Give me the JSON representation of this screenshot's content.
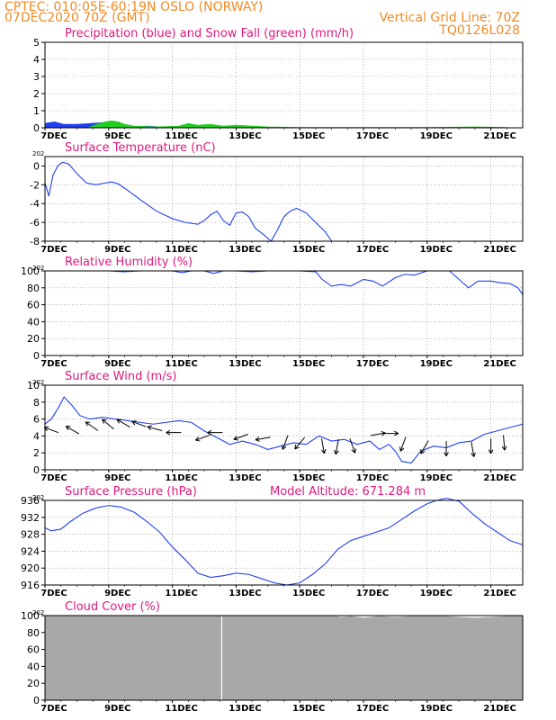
{
  "header": {
    "line1_left": "CPTEC:  010:05E-60:19N  OSLO (NORWAY)",
    "line2_left": "07DEC2020 70Z (GMT)",
    "line2_right": "Vertical Grid Line: 70Z",
    "line3_right": "TQ0126L028"
  },
  "x_axis": {
    "tick_labels": [
      "7DEC",
      "9DEC",
      "11DEC",
      "13DEC",
      "15DEC",
      "17DEC",
      "19DEC",
      "21DEC"
    ],
    "year_stub": "202"
  },
  "colors": {
    "line": "#1f3ff0",
    "precip": "#1f3ff0",
    "snow": "#22cc22",
    "cloud": "#a8a8a8",
    "header": "#f08a24",
    "title": "#e0187c"
  },
  "chart_data": [
    {
      "id": "precip",
      "type": "area",
      "title": "Precipitation (blue) and Snow Fall (green) (mm/h)",
      "xlim": [
        0,
        15
      ],
      "ylim": [
        0,
        5
      ],
      "yticks": [
        "0",
        "1",
        "2",
        "3",
        "4",
        "5"
      ],
      "grid": true,
      "series": [
        {
          "name": "Precipitation (blue)",
          "color": "#1f3ff0",
          "x": [
            0,
            0.3,
            0.6,
            1.0,
            1.4,
            1.8,
            2.1,
            2.4,
            2.8,
            3.2,
            3.6,
            4.2,
            5.0,
            6.0,
            7.0
          ],
          "y": [
            0.25,
            0.35,
            0.2,
            0.2,
            0.25,
            0.3,
            0.1,
            0.05,
            0.05,
            0.1,
            0.05,
            0.03,
            0.05,
            0.02,
            0.0
          ]
        },
        {
          "name": "Snow Fall (green)",
          "color": "#22cc22",
          "x": [
            1.4,
            1.7,
            1.9,
            2.1,
            2.3,
            2.5,
            2.8,
            3.5,
            4.2,
            4.5,
            4.8,
            5.2,
            5.6,
            6.0,
            6.5,
            7.0,
            8.0,
            10.0,
            12.0,
            13.5,
            14.5
          ],
          "y": [
            0.05,
            0.25,
            0.35,
            0.4,
            0.35,
            0.2,
            0.1,
            0.05,
            0.1,
            0.25,
            0.15,
            0.2,
            0.1,
            0.15,
            0.1,
            0.05,
            0.02,
            0.02,
            0.02,
            0.05,
            0.02
          ]
        }
      ]
    },
    {
      "id": "temp",
      "type": "line",
      "title": "Surface Temperature (nC)",
      "xlim": [
        0,
        15
      ],
      "ylim": [
        -8,
        1
      ],
      "yticks": [
        "-8",
        "-6",
        "-4",
        "-2",
        "0"
      ],
      "ytick_values": [
        -8,
        -6,
        -4,
        -2,
        0
      ],
      "grid": true,
      "series": [
        {
          "name": "Surface Temperature",
          "color": "#1f3ff0",
          "x": [
            0,
            0.12,
            0.25,
            0.4,
            0.55,
            0.75,
            1.0,
            1.3,
            1.6,
            1.9,
            2.1,
            2.3,
            2.6,
            3.0,
            3.5,
            4.0,
            4.4,
            4.8,
            5.0,
            5.2,
            5.4,
            5.6,
            5.8,
            6.0,
            6.2,
            6.4,
            6.6,
            6.9,
            7.1,
            7.3,
            7.5,
            7.7,
            7.9,
            8.2,
            8.5,
            8.8,
            9.0
          ],
          "y": [
            -1.8,
            -3.2,
            -1.0,
            0.0,
            0.4,
            0.2,
            -0.8,
            -1.8,
            -2.0,
            -1.8,
            -1.7,
            -1.9,
            -2.6,
            -3.6,
            -4.8,
            -5.6,
            -6.0,
            -6.2,
            -5.8,
            -5.2,
            -4.8,
            -5.8,
            -6.3,
            -5.0,
            -4.9,
            -5.4,
            -6.6,
            -7.4,
            -8.0,
            -6.8,
            -5.4,
            -4.8,
            -4.5,
            -5.0,
            -6.0,
            -7.0,
            -8.0
          ]
        }
      ]
    },
    {
      "id": "rh",
      "type": "line",
      "title": "Relative Humidity (%)",
      "xlim": [
        0,
        15
      ],
      "ylim": [
        0,
        100
      ],
      "yticks": [
        "0",
        "20",
        "40",
        "60",
        "80",
        "100"
      ],
      "grid": true,
      "series": [
        {
          "name": "Relative Humidity",
          "color": "#1f3ff0",
          "x": [
            0,
            0.5,
            1.0,
            1.5,
            2.0,
            2.5,
            3.0,
            3.5,
            4.0,
            4.3,
            4.6,
            5.0,
            5.3,
            5.6,
            6.0,
            6.5,
            7.0,
            7.5,
            8.0,
            8.5,
            8.7,
            9.0,
            9.3,
            9.6,
            10.0,
            10.3,
            10.6,
            11.0,
            11.3,
            11.6,
            12.0,
            12.2,
            12.4,
            12.7,
            13.0,
            13.3,
            13.6,
            14.0,
            14.3,
            14.6,
            14.85,
            15.0
          ],
          "y": [
            100,
            100,
            100,
            100,
            100,
            99,
            100,
            100,
            100,
            98,
            100,
            100,
            97,
            100,
            100,
            99,
            100,
            100,
            100,
            99,
            90,
            82,
            84,
            82,
            90,
            88,
            82,
            92,
            96,
            95,
            100,
            100,
            100,
            100,
            90,
            80,
            88,
            88,
            86,
            85,
            80,
            72
          ]
        }
      ]
    },
    {
      "id": "wind",
      "type": "line",
      "title": "Surface Wind (m/s)",
      "xlim": [
        0,
        15
      ],
      "ylim": [
        0,
        10
      ],
      "yticks": [
        "0",
        "2",
        "4",
        "6",
        "8",
        "10"
      ],
      "grid": true,
      "series": [
        {
          "name": "Surface Wind",
          "color": "#1f3ff0",
          "x": [
            0,
            0.2,
            0.4,
            0.6,
            0.85,
            1.1,
            1.4,
            1.8,
            2.2,
            2.6,
            3.0,
            3.4,
            3.8,
            4.2,
            4.6,
            5.0,
            5.4,
            5.8,
            6.2,
            6.6,
            7.0,
            7.4,
            7.8,
            8.2,
            8.6,
            9.0,
            9.4,
            9.8,
            10.2,
            10.5,
            10.8,
            11.0,
            11.2,
            11.5,
            11.8,
            12.2,
            12.6,
            13.0,
            13.4,
            13.8,
            14.2,
            14.6,
            15.0
          ],
          "y": [
            5.4,
            6.0,
            7.2,
            8.6,
            7.6,
            6.4,
            6.0,
            6.2,
            6.0,
            5.8,
            5.6,
            5.4,
            5.6,
            5.8,
            5.6,
            4.6,
            3.8,
            3.0,
            3.4,
            3.0,
            2.4,
            2.8,
            3.2,
            3.0,
            4.0,
            3.4,
            3.6,
            3.0,
            3.4,
            2.4,
            3.0,
            2.2,
            1.0,
            0.8,
            2.2,
            2.8,
            2.6,
            3.2,
            3.4,
            4.2,
            4.6,
            5.0,
            5.4
          ]
        }
      ],
      "wind_vectors": [
        {
          "x": 0.35,
          "y": 4.5,
          "dir_deg": 160
        },
        {
          "x": 1.0,
          "y": 4.4,
          "dir_deg": 150
        },
        {
          "x": 1.6,
          "y": 4.8,
          "dir_deg": 145
        },
        {
          "x": 2.1,
          "y": 5.0,
          "dir_deg": 140
        },
        {
          "x": 2.6,
          "y": 5.2,
          "dir_deg": 150
        },
        {
          "x": 3.1,
          "y": 5.2,
          "dir_deg": 160
        },
        {
          "x": 3.6,
          "y": 4.7,
          "dir_deg": 165
        },
        {
          "x": 4.2,
          "y": 4.4,
          "dir_deg": 180
        },
        {
          "x": 5.1,
          "y": 4.0,
          "dir_deg": 200
        },
        {
          "x": 5.5,
          "y": 4.4,
          "dir_deg": 180
        },
        {
          "x": 6.3,
          "y": 4.1,
          "dir_deg": 200
        },
        {
          "x": 7.0,
          "y": 3.8,
          "dir_deg": 190
        },
        {
          "x": 7.6,
          "y": 3.8,
          "dir_deg": 250
        },
        {
          "x": 8.1,
          "y": 3.6,
          "dir_deg": 230
        },
        {
          "x": 8.7,
          "y": 3.4,
          "dir_deg": 280
        },
        {
          "x": 9.2,
          "y": 3.3,
          "dir_deg": 260
        },
        {
          "x": 9.6,
          "y": 3.4,
          "dir_deg": 290
        },
        {
          "x": 10.3,
          "y": 4.1,
          "dir_deg": 10
        },
        {
          "x": 10.7,
          "y": 4.3,
          "dir_deg": 0
        },
        {
          "x": 11.3,
          "y": 3.6,
          "dir_deg": 250
        },
        {
          "x": 12.0,
          "y": 3.2,
          "dir_deg": 240
        },
        {
          "x": 12.6,
          "y": 3.1,
          "dir_deg": 270
        },
        {
          "x": 13.4,
          "y": 3.0,
          "dir_deg": 280
        },
        {
          "x": 14.0,
          "y": 3.4,
          "dir_deg": 270
        },
        {
          "x": 14.4,
          "y": 3.8,
          "dir_deg": 275
        }
      ]
    },
    {
      "id": "pressure",
      "type": "line",
      "title": "Surface Pressure (hPa)",
      "annotation": "Model Altitude: 671.284  m",
      "xlim": [
        0,
        15
      ],
      "ylim": [
        916,
        936
      ],
      "yticks": [
        "916",
        "920",
        "924",
        "928",
        "932",
        "936"
      ],
      "grid": true,
      "series": [
        {
          "name": "Surface Pressure",
          "color": "#1f3ff0",
          "x": [
            0,
            0.2,
            0.5,
            0.8,
            1.2,
            1.6,
            2.0,
            2.4,
            2.8,
            3.2,
            3.6,
            4.0,
            4.4,
            4.8,
            5.2,
            5.6,
            6.0,
            6.4,
            6.8,
            7.2,
            7.6,
            8.0,
            8.4,
            8.8,
            9.2,
            9.6,
            10.0,
            10.4,
            10.8,
            11.2,
            11.6,
            12.0,
            12.3,
            12.6,
            13.0,
            13.4,
            13.8,
            14.2,
            14.6,
            15.0
          ],
          "y": [
            929.5,
            928.8,
            929.2,
            931.0,
            933.0,
            934.2,
            934.8,
            934.4,
            933.2,
            931.0,
            928.5,
            925.0,
            922.0,
            918.8,
            917.8,
            918.2,
            918.8,
            918.5,
            917.5,
            916.5,
            916.0,
            916.5,
            918.5,
            921.0,
            924.5,
            926.5,
            927.5,
            928.5,
            929.5,
            931.5,
            933.5,
            935.2,
            936.0,
            936.5,
            935.8,
            933.0,
            930.5,
            928.5,
            926.5,
            925.5
          ]
        }
      ]
    },
    {
      "id": "cloud",
      "type": "area",
      "title": "Cloud Cover (%)",
      "xlim": [
        0,
        15
      ],
      "ylim": [
        0,
        100
      ],
      "yticks": [
        "0",
        "20",
        "40",
        "60",
        "80",
        "100"
      ],
      "grid": false,
      "series": [
        {
          "name": "Cloud Cover",
          "color": "#a8a8a8",
          "x": [
            0,
            5,
            9,
            9.3,
            9.6,
            10.0,
            10.5,
            11.0,
            12.0,
            12.5,
            13.0,
            13.5,
            15.0
          ],
          "y": [
            100,
            100,
            100,
            98,
            99,
            97,
            99,
            98,
            100,
            99,
            98,
            97,
            100
          ]
        }
      ]
    }
  ]
}
